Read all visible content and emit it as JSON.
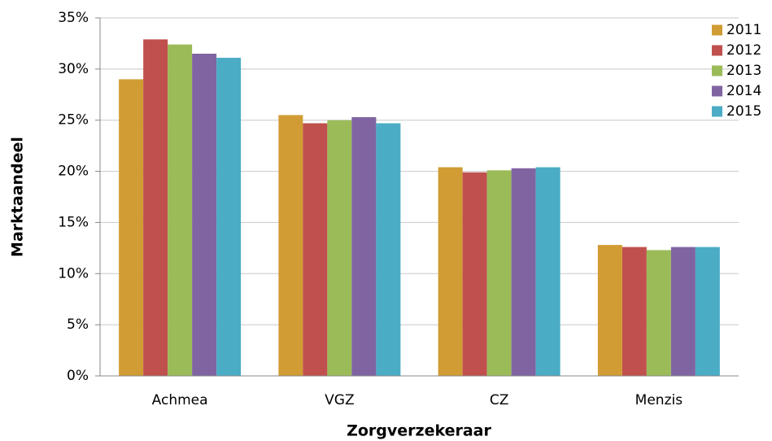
{
  "chart_data": {
    "type": "bar",
    "x_label": "Zorgverzekeraar",
    "y_label": "Marktaandeel",
    "categories": [
      "Achmea",
      "VGZ",
      "CZ",
      "Menzis"
    ],
    "series": [
      {
        "name": "2011",
        "color": "#d09c33",
        "values": [
          29.0,
          25.5,
          20.4,
          12.8
        ]
      },
      {
        "name": "2012",
        "color": "#c0504d",
        "values": [
          32.9,
          24.7,
          19.9,
          12.6
        ]
      },
      {
        "name": "2013",
        "color": "#9bbb59",
        "values": [
          32.4,
          25.0,
          20.1,
          12.3
        ]
      },
      {
        "name": "2014",
        "color": "#8064a2",
        "values": [
          31.5,
          25.3,
          20.3,
          12.6
        ]
      },
      {
        "name": "2015",
        "color": "#4bacc6",
        "values": [
          31.1,
          24.7,
          20.4,
          12.6
        ]
      }
    ],
    "ylim": [
      0,
      35
    ],
    "yticks": [
      {
        "value": 0,
        "label": "0%"
      },
      {
        "value": 5,
        "label": "5%"
      },
      {
        "value": 10,
        "label": "10%"
      },
      {
        "value": 15,
        "label": "15%"
      },
      {
        "value": 20,
        "label": "20%"
      },
      {
        "value": 25,
        "label": "25%"
      },
      {
        "value": 30,
        "label": "30%"
      },
      {
        "value": 35,
        "label": "35%"
      }
    ],
    "grid": true,
    "legend": "top-right"
  }
}
